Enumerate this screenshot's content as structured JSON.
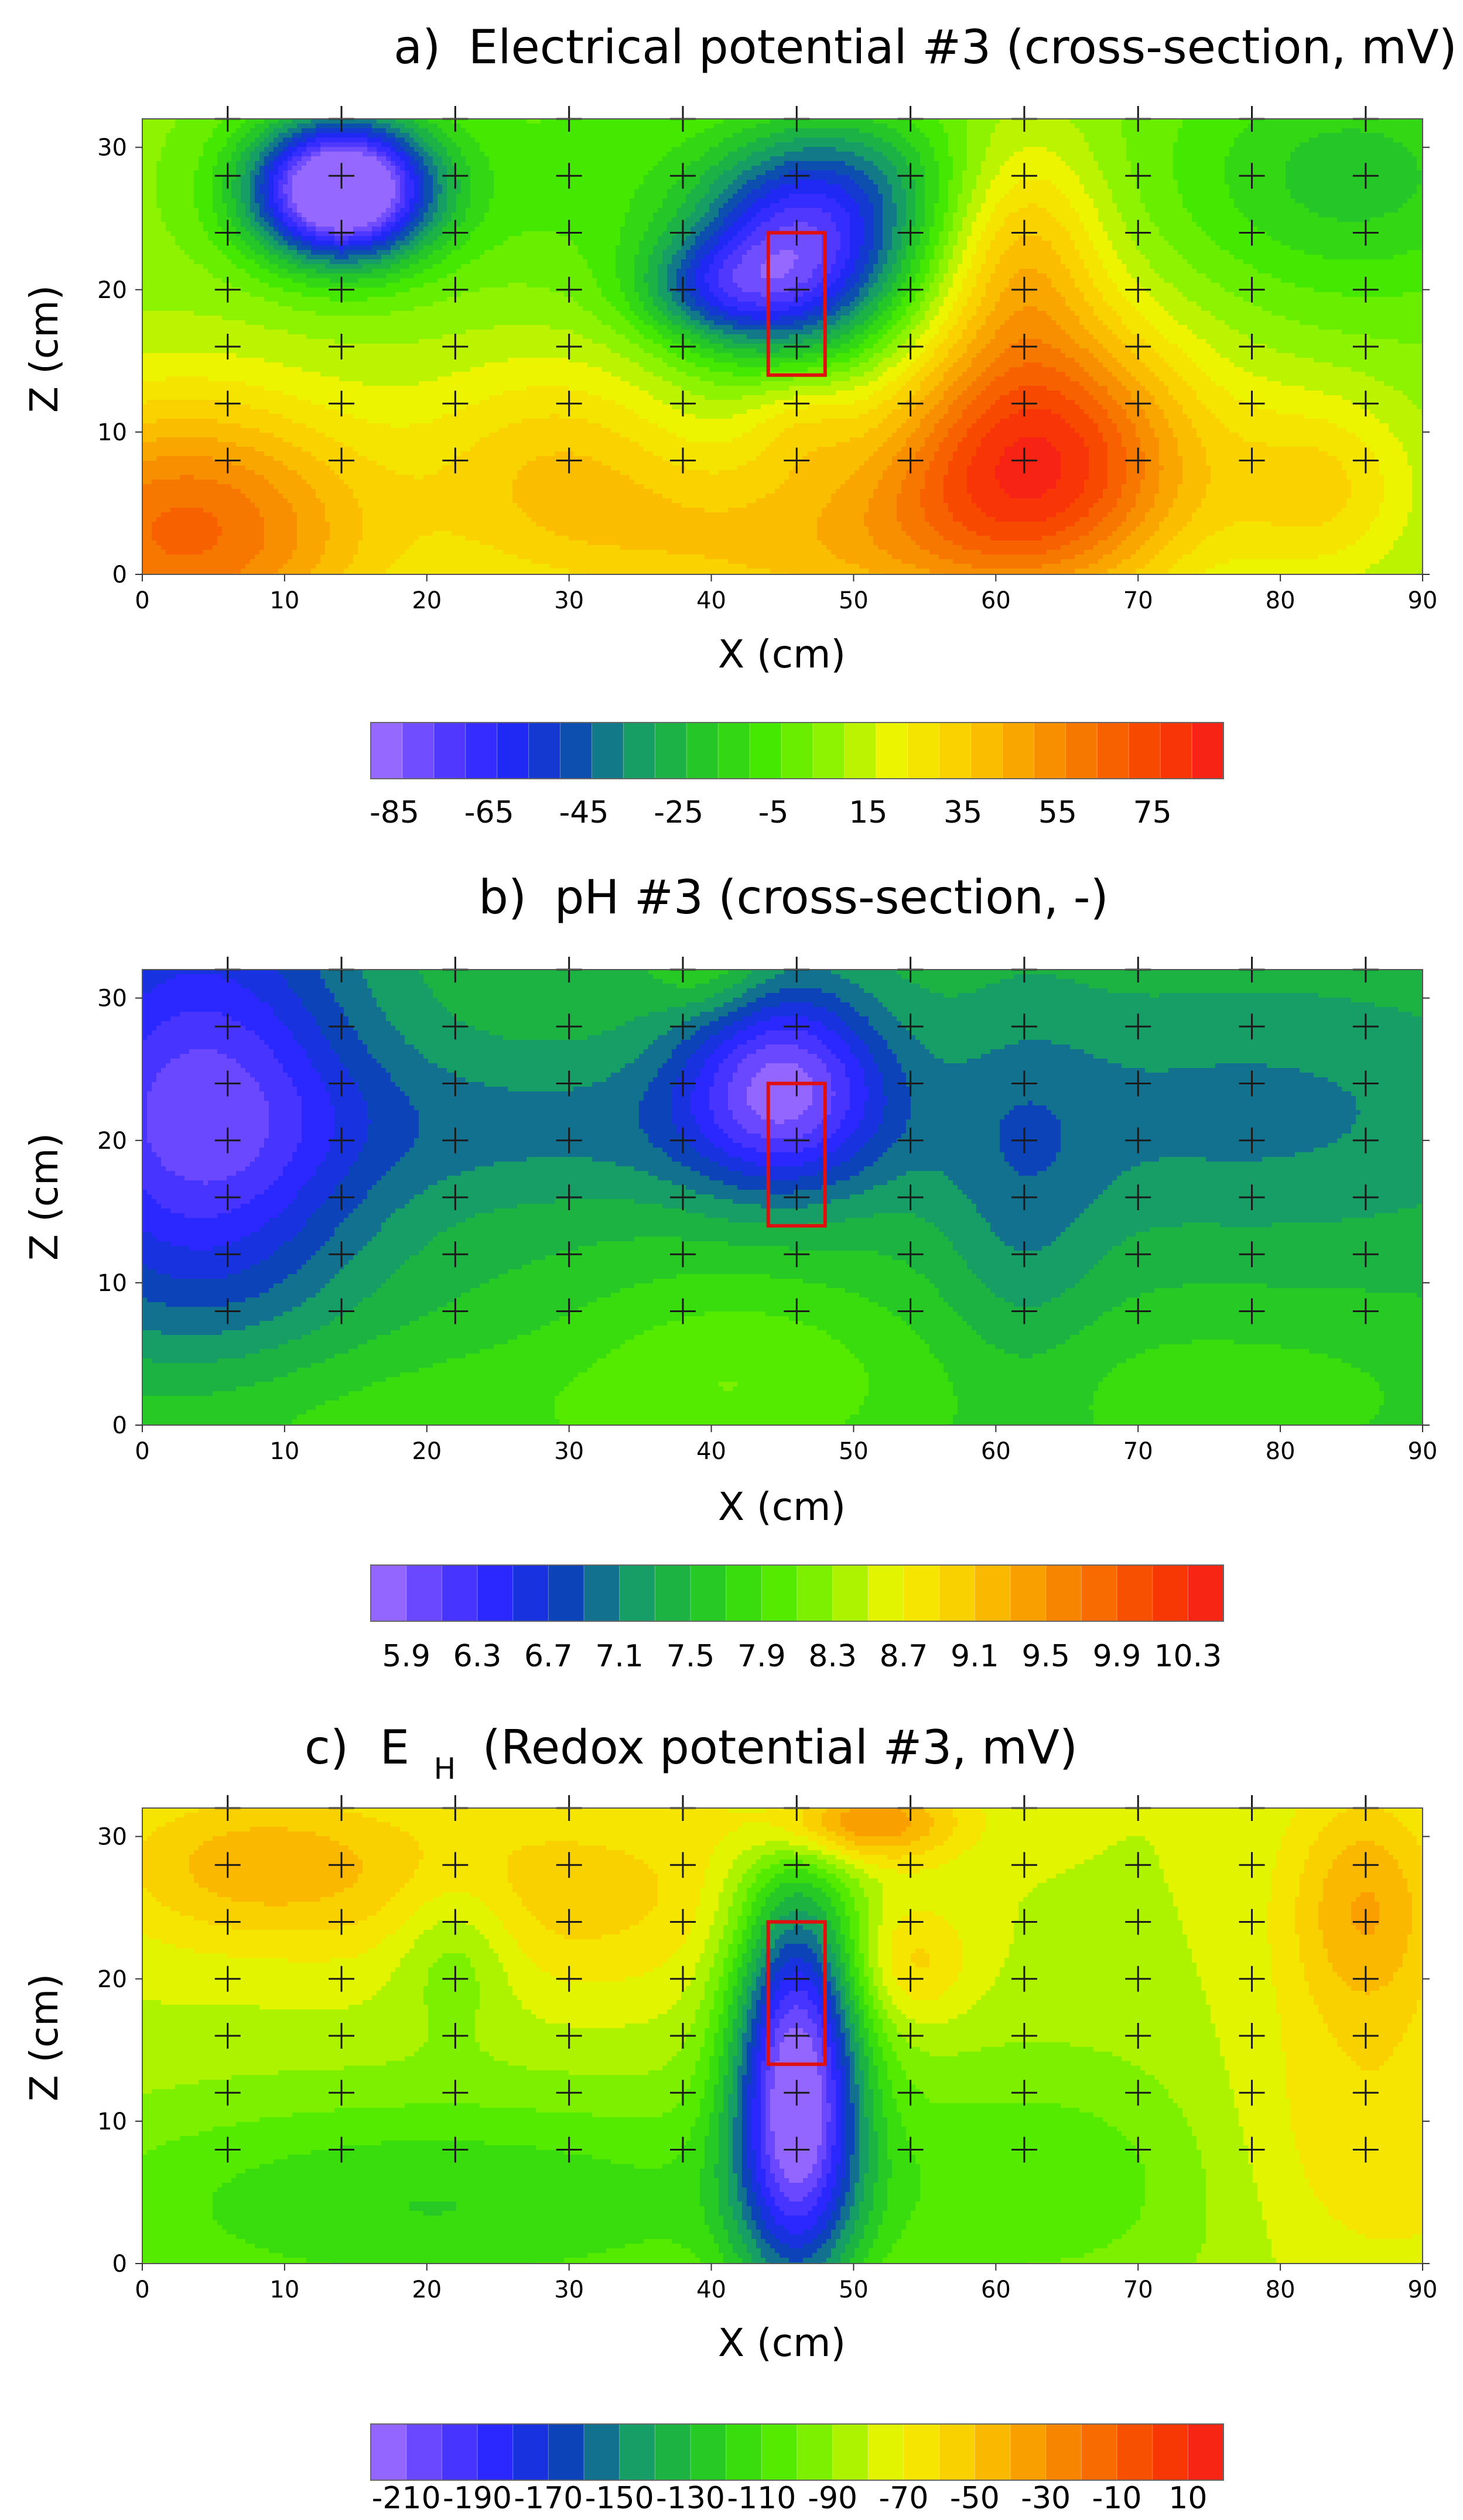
{
  "figure": {
    "background": "#ffffff"
  },
  "chart_data": [
    {
      "id": "a",
      "type": "heatmap",
      "panel": "a)",
      "title": "Electrical potential #3 (cross-section, mV)",
      "xlabel": "X (cm)",
      "ylabel": "Z (cm)",
      "xlim": [
        0,
        90
      ],
      "ylim": [
        0,
        32
      ],
      "xticks": [
        0,
        10,
        20,
        30,
        40,
        50,
        60,
        70,
        80,
        90
      ],
      "yticks": [
        0,
        10,
        20,
        30
      ],
      "vmin": -90,
      "vmax": 90,
      "colorbar": {
        "levels": 27,
        "ticks": [
          -85,
          -65,
          -45,
          -25,
          -5,
          15,
          35,
          55,
          75
        ],
        "range": [
          -90,
          90
        ]
      },
      "background_value": 5,
      "anomalies": [
        {
          "x": 14,
          "z": 27,
          "sx": 4.5,
          "sz": 3.5,
          "value": -120
        },
        {
          "x": 46,
          "z": 22,
          "sx": 5.5,
          "sz": 5,
          "value": -75
        },
        {
          "x": 40,
          "z": 20,
          "sx": 4,
          "sz": 2.5,
          "value": -30
        },
        {
          "x": 50,
          "z": 28,
          "sx": 6,
          "sz": 4,
          "value": -25
        },
        {
          "x": 63,
          "z": 8,
          "sx": 8,
          "sz": 7,
          "value": 75
        },
        {
          "x": 3,
          "z": 3,
          "sx": 10,
          "sz": 7,
          "value": 60
        },
        {
          "x": 29,
          "z": 8,
          "sx": 7,
          "sz": 6,
          "value": 25
        },
        {
          "x": 46,
          "z": 11,
          "sx": 3,
          "sz": 3,
          "value": 15
        },
        {
          "x": 62,
          "z": 23,
          "sx": 4,
          "sz": 6,
          "value": 30
        },
        {
          "x": 85,
          "z": 28,
          "sx": 9,
          "sz": 6,
          "value": -25
        },
        {
          "x": 30,
          "z": 28,
          "sx": 8,
          "sz": 6,
          "value": -10
        },
        {
          "x": 45,
          "z": 2,
          "sx": 12,
          "sz": 5,
          "value": 30
        },
        {
          "x": 83,
          "z": 6,
          "sx": 5,
          "sz": 5,
          "value": 25
        }
      ],
      "grid_x": [
        6,
        14,
        22,
        30,
        38,
        46,
        54,
        62,
        70,
        78,
        86
      ],
      "grid_z": [
        8,
        12,
        16,
        20,
        24,
        28,
        32
      ],
      "highlight_box": {
        "x0": 44,
        "x1": 48,
        "z0": 14,
        "z1": 24
      }
    },
    {
      "id": "b",
      "type": "heatmap",
      "panel": "b)",
      "title": "pH #3 (cross-section, -)",
      "xlabel": "X (cm)",
      "ylabel": "Z (cm)",
      "xlim": [
        0,
        90
      ],
      "ylim": [
        0,
        32
      ],
      "xticks": [
        0,
        10,
        20,
        30,
        40,
        50,
        60,
        70,
        80,
        90
      ],
      "yticks": [
        0,
        10,
        20,
        30
      ],
      "vmin": 5.7,
      "vmax": 10.5,
      "colorbar": {
        "levels": 24,
        "ticks": [
          5.9,
          6.3,
          6.7,
          7.1,
          7.5,
          7.9,
          8.3,
          8.7,
          9.1,
          9.5,
          9.9,
          10.3
        ],
        "range": [
          5.7,
          10.5
        ]
      },
      "background_value": 7.45,
      "anomalies": [
        {
          "x": 45,
          "z": 24,
          "sx": 5,
          "sz": 5,
          "value": -1.45
        },
        {
          "x": 4,
          "z": 22,
          "sx": 8,
          "sz": 11,
          "value": -1.4
        },
        {
          "x": 30,
          "z": 21,
          "sx": 18,
          "sz": 4,
          "value": -0.4
        },
        {
          "x": 78,
          "z": 22,
          "sx": 14,
          "sz": 6,
          "value": -0.4
        },
        {
          "x": 62,
          "z": 15,
          "sx": 4,
          "sz": 10,
          "value": -0.35
        },
        {
          "x": 42,
          "z": 4,
          "sx": 9,
          "sz": 6,
          "value": 0.5
        },
        {
          "x": 14,
          "z": 0,
          "sx": 20,
          "sz": 5,
          "value": 0.4
        },
        {
          "x": 75,
          "z": 2,
          "sx": 15,
          "sz": 5,
          "value": 0.35
        },
        {
          "x": 40,
          "z": 32,
          "sx": 3,
          "sz": 2.5,
          "value": 0.4
        }
      ],
      "grid_x": [
        6,
        14,
        22,
        30,
        38,
        46,
        54,
        62,
        70,
        78,
        86
      ],
      "grid_z": [
        8,
        12,
        16,
        20,
        24,
        28,
        32
      ],
      "highlight_box": {
        "x0": 44,
        "x1": 48,
        "z0": 14,
        "z1": 24
      }
    },
    {
      "id": "c",
      "type": "heatmap",
      "panel": "c)",
      "title_main": "E",
      "title_sub": "H",
      "title_rest": "(Redox potential #3, mV)",
      "xlabel": "X (cm)",
      "ylabel": "Z (cm)",
      "xlim": [
        0,
        90
      ],
      "ylim": [
        0,
        32
      ],
      "xticks": [
        0,
        10,
        20,
        30,
        40,
        50,
        60,
        70,
        80,
        90
      ],
      "yticks": [
        0,
        10,
        20,
        30
      ],
      "vmin": -220,
      "vmax": 20,
      "colorbar": {
        "levels": 24,
        "ticks": [
          -210,
          -190,
          -170,
          -150,
          -130,
          -110,
          -90,
          -70,
          -50,
          -30,
          -10,
          10
        ],
        "range": [
          -220,
          20
        ]
      },
      "background_value": -80,
      "anomalies": [
        {
          "x": 46,
          "z": 13,
          "sx": 3.2,
          "sz": 10,
          "value": -135
        },
        {
          "x": 20,
          "z": 4,
          "sx": 20,
          "sz": 6,
          "value": -40
        },
        {
          "x": 65,
          "z": 6,
          "sx": 14,
          "sz": 7,
          "value": -25
        },
        {
          "x": 8,
          "z": 28,
          "sx": 8,
          "sz": 4,
          "value": 35
        },
        {
          "x": 50,
          "z": 31,
          "sx": 5,
          "sz": 2,
          "value": 55
        },
        {
          "x": 86,
          "z": 25,
          "sx": 4,
          "sz": 6,
          "value": 40
        },
        {
          "x": 85,
          "z": 8,
          "sx": 8,
          "sz": 7,
          "value": 25
        },
        {
          "x": 30,
          "z": 26,
          "sx": 10,
          "sz": 5,
          "value": 25
        },
        {
          "x": 54,
          "z": 21,
          "sx": 3,
          "sz": 3,
          "value": 25
        },
        {
          "x": 22,
          "z": 22,
          "sx": 3,
          "sz": 4,
          "value": -25
        }
      ],
      "grid_x": [
        6,
        14,
        22,
        30,
        38,
        46,
        54,
        62,
        70,
        78,
        86
      ],
      "grid_z": [
        8,
        12,
        16,
        20,
        24,
        28,
        32
      ],
      "highlight_box": {
        "x0": 44,
        "x1": 48,
        "z0": 14,
        "z1": 24
      }
    }
  ],
  "colormap": [
    "#a876ff",
    "#5b3dff",
    "#2424ff",
    "#0b44b8",
    "#169a6a",
    "#22c42a",
    "#44e800",
    "#8ef300",
    "#f1f400",
    "#fbcf00",
    "#f9a000",
    "#f77000",
    "#f73f00",
    "#f71b1b"
  ],
  "box_color": "#e01010",
  "grid_marker_color": "#1a1a1a"
}
